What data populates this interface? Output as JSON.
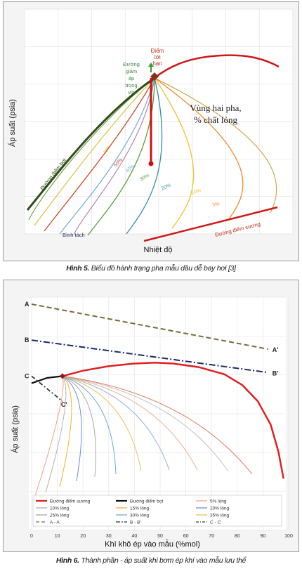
{
  "figure5": {
    "ylabel": "Áp suất (psia)",
    "xlabel": "Nhiệt độ",
    "annotations": {
      "critical_point": [
        "Điểm",
        "tới",
        "hạn"
      ],
      "isothermal_drop": [
        "Đường",
        "giảm",
        "áp",
        "trọng",
        "vỉa"
      ],
      "two_phase": [
        "Vùng hai pha,",
        "% chất lỏng"
      ],
      "bubble_curve": "Đường điểm bọt",
      "dew_curve": "Đường điểm sương",
      "separator": "Bình tách"
    },
    "quality_lines": [
      {
        "label": "70%",
        "color": "#d7c84a"
      },
      {
        "label": "50%",
        "color": "#c64a2a"
      },
      {
        "label": "40%",
        "color": "#7ab0d8"
      },
      {
        "label": "30%",
        "color": "#5aa03a"
      },
      {
        "label": "20%",
        "color": "#2d8fa0"
      },
      {
        "label": "10%",
        "color": "#f0c030"
      },
      {
        "label": "5%",
        "color": "#f08a2a"
      }
    ],
    "caption_label": "Hình 5.",
    "caption_text": " Biểu đồ hành trạng pha mẫu dầu dễ bay hơi [3]"
  },
  "figure6": {
    "ylabel": "Áp suất (psia)",
    "xlabel": "Khí khô ép vào mẫu (%mol)",
    "point_labels": {
      "A": "A",
      "A2": "A'",
      "B": "B",
      "B2": "B'",
      "C": "C",
      "C2": "C'"
    },
    "legend": [
      {
        "label": "Đường điểm sương",
        "color": "#e02020"
      },
      {
        "label": "Đường điểm bọt",
        "color": "#111111"
      },
      {
        "label": "5% lỏng",
        "color": "#f0a080"
      },
      {
        "label": "10% lỏng",
        "color": "#b0b0b0"
      },
      {
        "label": "15% lỏng",
        "color": "#f0b030"
      },
      {
        "label": "20% lỏng",
        "color": "#6a8fd0"
      },
      {
        "label": "25% lỏng",
        "color": "#a8a8a8"
      },
      {
        "label": "30% lỏng",
        "color": "#70a8e0"
      },
      {
        "label": "35% lỏng",
        "color": "#f0c060"
      },
      {
        "label": "A - A'",
        "color": "#7a6a3a"
      },
      {
        "label": "B - B'",
        "color": "#1a2a6a"
      },
      {
        "label": "C - C'",
        "color": "#2a3a3a"
      }
    ],
    "caption_label": "Hình 6.",
    "caption_text": " Thành phần - áp suất khi bơm ép khí vào mẫu lưu thể"
  },
  "chart_data": {
    "type": "line",
    "xlabel": "Khí khô ép vào mẫu (%mol)",
    "ylabel": "Áp suất (psia)",
    "x_ticks": [
      0,
      10,
      20,
      30,
      40,
      50,
      60,
      70,
      80,
      90,
      100
    ],
    "xlim": [
      0,
      100
    ],
    "series": [
      {
        "name": "Đường điểm sương",
        "x": [
          12,
          20,
          30,
          40,
          48,
          55,
          65,
          75,
          82,
          88,
          93,
          96,
          98
        ],
        "y": [
          0.6,
          0.63,
          0.655,
          0.67,
          0.675,
          0.67,
          0.65,
          0.61,
          0.55,
          0.46,
          0.33,
          0.18,
          0.03
        ]
      },
      {
        "name": "Đường điểm bọt",
        "x": [
          0,
          6,
          12
        ],
        "y": [
          0.56,
          0.59,
          0.6
        ]
      },
      {
        "name": "A - A'",
        "x": [
          0,
          92
        ],
        "y": [
          1.0,
          0.75
        ]
      },
      {
        "name": "B - B'",
        "x": [
          0,
          92
        ],
        "y": [
          0.8,
          0.62
        ]
      },
      {
        "name": "C - C'",
        "x": [
          0,
          12
        ],
        "y": [
          0.6,
          0.46
        ]
      }
    ]
  }
}
